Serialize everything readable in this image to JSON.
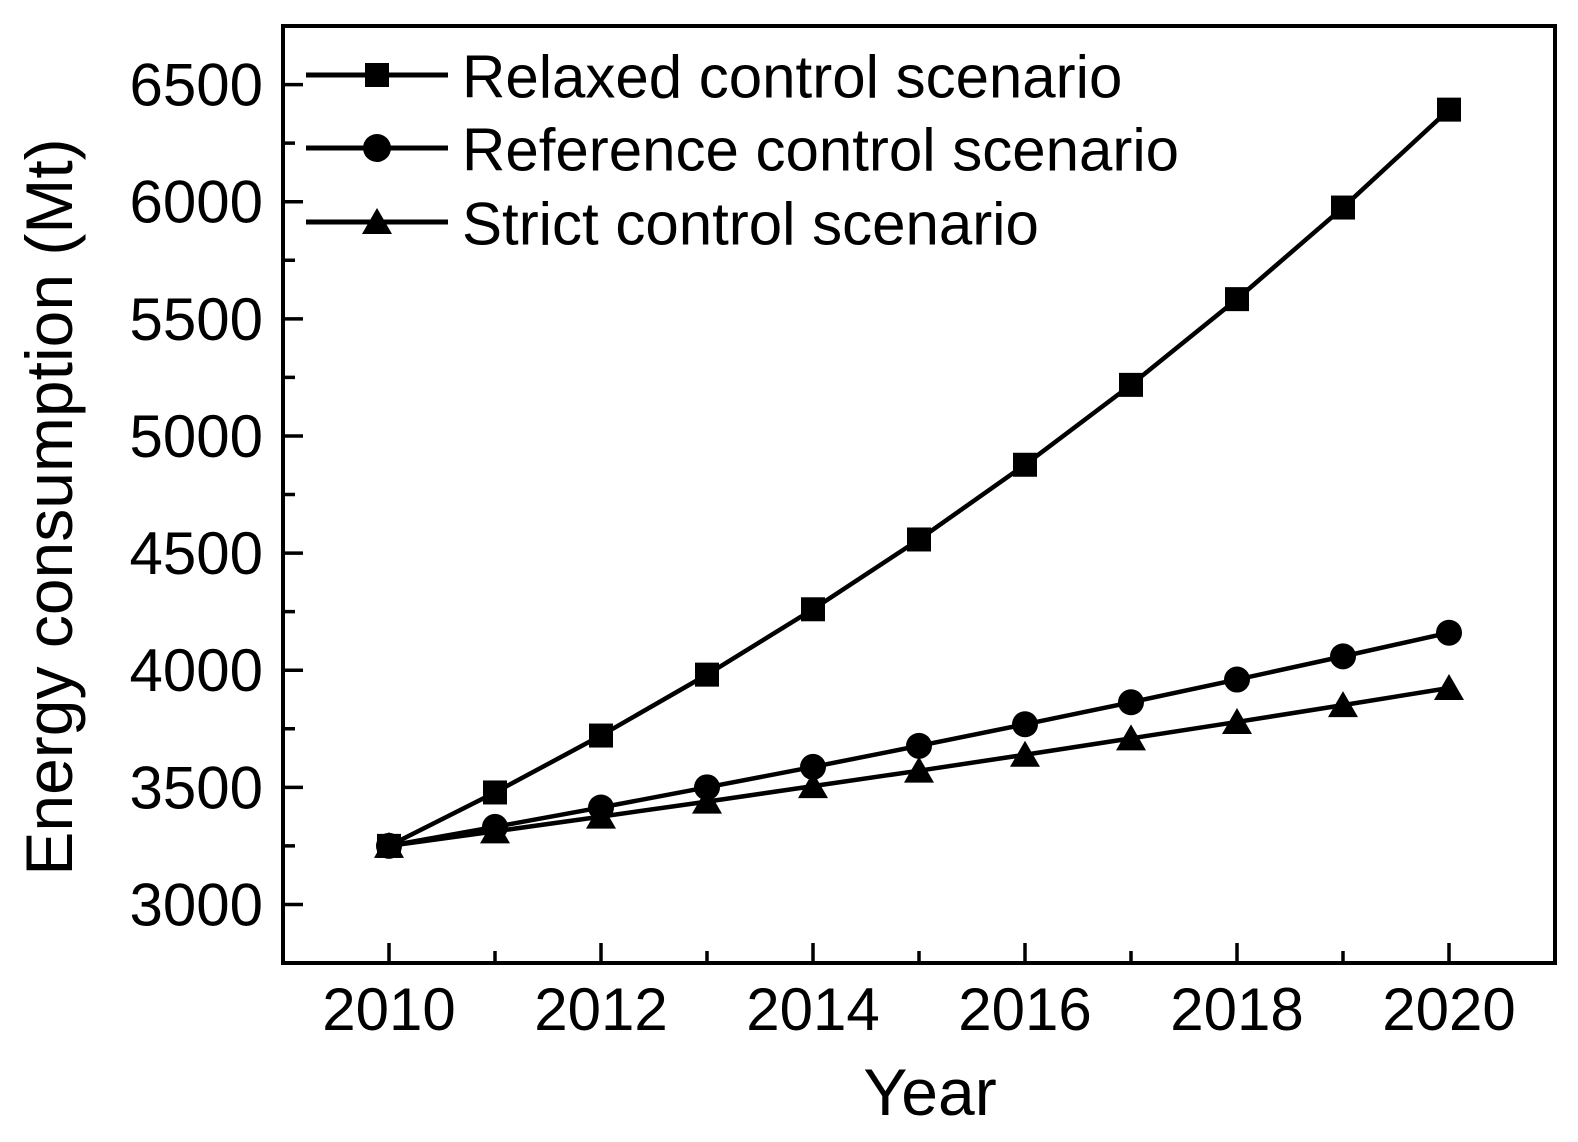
{
  "figure": {
    "background": "#ffffff",
    "ink_color": "#000000"
  },
  "chart_data": {
    "type": "line",
    "title": "",
    "xlabel": "Year",
    "ylabel": "Energy consumption (Mt)",
    "x": [
      2010,
      2011,
      2012,
      2013,
      2014,
      2015,
      2016,
      2017,
      2018,
      2019,
      2020
    ],
    "series": [
      {
        "name": "Relaxed control scenario",
        "marker": "square",
        "values": [
          3250,
          3478,
          3721,
          3981,
          4260,
          4558,
          4877,
          5218,
          5584,
          5975,
          6393
        ]
      },
      {
        "name": "Reference control scenario",
        "marker": "circle",
        "values": [
          3250,
          3331,
          3414,
          3500,
          3587,
          3677,
          3769,
          3863,
          3960,
          4059,
          4160
        ]
      },
      {
        "name": "Strict control scenario",
        "marker": "triangle",
        "values": [
          3250,
          3312,
          3375,
          3439,
          3505,
          3571,
          3639,
          3709,
          3779,
          3851,
          3924
        ]
      }
    ],
    "xlim": [
      2009,
      2021
    ],
    "ylim": [
      2750,
      6750
    ],
    "x_major_ticks": [
      2010,
      2012,
      2014,
      2016,
      2018,
      2020
    ],
    "x_minor_ticks": [
      2011,
      2013,
      2015,
      2017,
      2019
    ],
    "y_major_ticks": [
      3000,
      3500,
      4000,
      4500,
      5000,
      5500,
      6000,
      6500
    ],
    "y_minor_ticks": [
      3250,
      3750,
      4250,
      4750,
      5250,
      5750,
      6250
    ],
    "grid": false,
    "legend_position": "top-left-inside",
    "line_color": "#000000",
    "marker_color": "#000000"
  }
}
